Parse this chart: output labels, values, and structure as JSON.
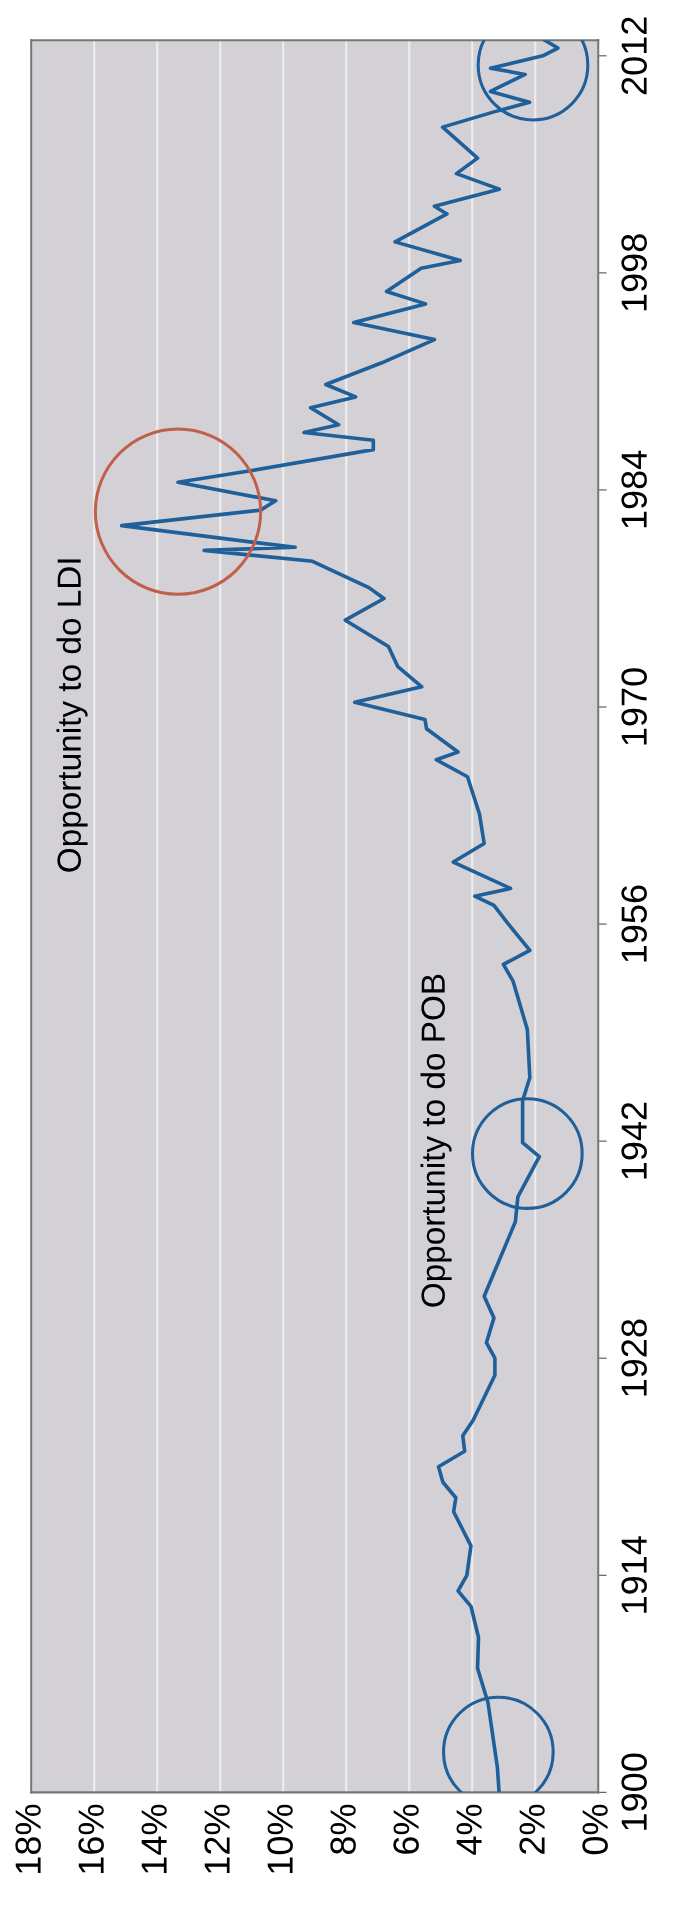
{
  "chart_data": {
    "type": "line",
    "orientation": "horizontal",
    "x": [
      1900.1,
      1901.6,
      1905.8,
      1908,
      1910,
      1912,
      1913,
      1914,
      1915.9,
      1918.1,
      1919,
      1920,
      1921,
      1922,
      1923,
      1924,
      1926.9,
      1928,
      1929,
      1930.6,
      1932,
      1936.8,
      1938.4,
      1941,
      1941.9,
      1944.6,
      1946.1,
      1949.2,
      1952.3,
      1953.4,
      1954.3,
      1956,
      1957.2,
      1957.8,
      1958.3,
      1960,
      1961.2,
      1963.1,
      1965.5,
      1966.6,
      1967.1,
      1968.6,
      1969.2,
      1970.3,
      1971.3,
      1972.6,
      1973.9,
      1975.6,
      1977,
      1977.7,
      1979.4,
      1980.1,
      1980.3,
      1980.6,
      1981.7,
      1982.7,
      1983.3,
      1984.5,
      1985.2,
      1986.6,
      1987.2,
      1987.7,
      1988.2,
      1989.3,
      1990,
      1990.8,
      1992.2,
      1993.7,
      1994.8,
      1996,
      1996.8,
      1998.3,
      1998.8,
      2000,
      2001.8,
      2002.3,
      2003.4,
      2004.4,
      2005.4,
      2007.4,
      2008.4,
      2009,
      2009.7,
      2010.8,
      2011.2,
      2012,
      2012.5,
      2013
    ],
    "series": [
      {
        "color": "#1f5f9a",
        "values": [
          3.15,
          3.2,
          3.5,
          3.83,
          3.8,
          4.04,
          4.45,
          4.17,
          4.04,
          4.59,
          4.52,
          4.93,
          5.07,
          4.24,
          4.3,
          3.97,
          3.28,
          3.28,
          3.55,
          3.31,
          3.62,
          2.63,
          2.55,
          1.87,
          2.4,
          2.4,
          2.17,
          2.25,
          2.7,
          3.01,
          2.17,
          2.85,
          3.31,
          3.92,
          2.78,
          4.6,
          3.62,
          3.77,
          4.15,
          5.14,
          4.45,
          5.45,
          5.5,
          7.73,
          5.6,
          6.36,
          6.66,
          8.03,
          6.8,
          7.28,
          9.07,
          12.51,
          9.62,
          10.86,
          15.13,
          10.72,
          10.24,
          13.34,
          11.14,
          7.14,
          7.14,
          9.34,
          8.24,
          9.13,
          7.7,
          8.65,
          6.87,
          5.2,
          7.76,
          5.48,
          6.72,
          5.62,
          4.38,
          6.45,
          4.8,
          5.2,
          3.14,
          4.5,
          3.83,
          4.94,
          3.28,
          2.18,
          3.42,
          2.32,
          3.42,
          1.76,
          1.28,
          1.69
        ]
      },
      {
        "type": "bubble",
        "x": [
          1902.6,
          1941.2,
          1982.6,
          2011.4
        ],
        "values": [
          3.17,
          2.25,
          13.34,
          2.07
        ],
        "sizes": [
          0.44,
          0.44,
          1,
          0.44
        ],
        "colors": [
          "#1f5f9a",
          "#1f5f9a",
          "#c0604a",
          "#1f5f9a"
        ]
      }
    ],
    "ylim": [
      1900,
      2013
    ],
    "yticks": [
      1900,
      1914,
      1928,
      1942,
      1956,
      1970,
      1984,
      1998,
      2012
    ],
    "xlim": [
      18,
      0
    ],
    "xticks": [
      {
        "value": 0,
        "label": "0%"
      },
      {
        "value": 2,
        "label": "2%"
      },
      {
        "value": 4,
        "label": "4%"
      },
      {
        "value": 6,
        "label": "6%"
      },
      {
        "value": 8,
        "label": "8%"
      },
      {
        "value": 10,
        "label": "10%"
      },
      {
        "value": 12,
        "label": "12%"
      },
      {
        "value": 14,
        "label": "14%"
      },
      {
        "value": 16,
        "label": "16%"
      },
      {
        "value": 18,
        "label": "18%"
      }
    ],
    "annotations": [
      "Opportunity to do LDI",
      "Opportunity to do POB"
    ],
    "grid": "x",
    "legend": false,
    "line_style": "solid"
  }
}
